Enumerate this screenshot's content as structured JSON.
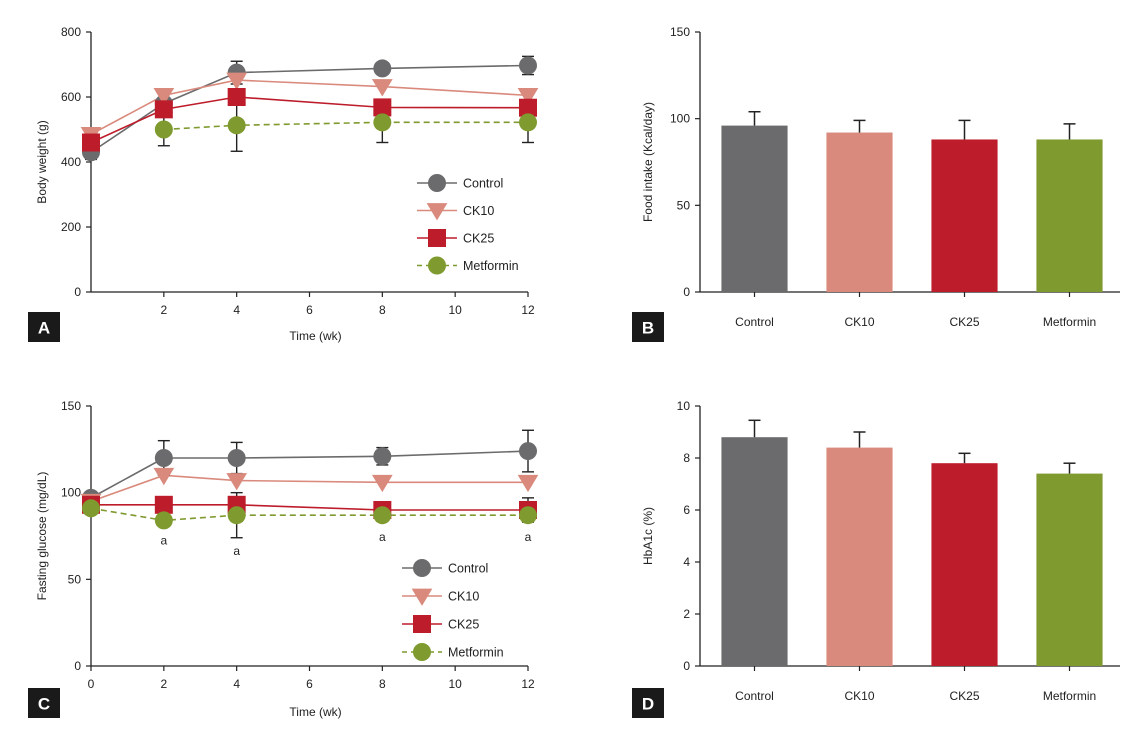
{
  "panels": [
    {
      "id": "A",
      "label": "A"
    },
    {
      "id": "B",
      "label": "B"
    },
    {
      "id": "C",
      "label": "C"
    },
    {
      "id": "D",
      "label": "D"
    }
  ],
  "colors": {
    "Control": "#6b6b6d",
    "CK10": "#d98a7c",
    "CK25": "#bd1c2b",
    "Metformin": "#7f9a2e",
    "error": "#222222",
    "axis": "#222222"
  },
  "chart_data": [
    {
      "panel": "A",
      "type": "line",
      "title": "",
      "xlabel": "Time (wk)",
      "ylabel": "Body weight (g)",
      "xlim": [
        0,
        12
      ],
      "ylim": [
        0,
        800
      ],
      "xticks": [
        2,
        4,
        6,
        8,
        10,
        12
      ],
      "yticks": [
        0,
        200,
        400,
        600,
        800
      ],
      "legend": "bottom-right",
      "series": [
        {
          "name": "Control",
          "marker": "circle",
          "dashed": false,
          "x": [
            0,
            2,
            4,
            8,
            12
          ],
          "y": [
            430,
            580,
            675,
            688,
            697
          ],
          "err": [
            22,
            0,
            35,
            0,
            28
          ]
        },
        {
          "name": "CK10",
          "marker": "triangle",
          "dashed": false,
          "x": [
            0,
            2,
            4,
            8,
            12
          ],
          "y": [
            485,
            605,
            652,
            632,
            605
          ],
          "err": [
            0,
            0,
            0,
            0,
            0
          ]
        },
        {
          "name": "CK25",
          "marker": "square",
          "dashed": false,
          "x": [
            0,
            2,
            4,
            8,
            12
          ],
          "y": [
            460,
            562,
            600,
            568,
            567
          ],
          "err": [
            0,
            0,
            0,
            0,
            0
          ]
        },
        {
          "name": "Metformin",
          "marker": "circle",
          "dashed": true,
          "x": [
            2,
            4,
            8,
            12
          ],
          "y": [
            500,
            513,
            522,
            522
          ],
          "err": [
            50,
            80,
            62,
            62
          ]
        }
      ]
    },
    {
      "panel": "B",
      "type": "bar",
      "title": "",
      "xlabel": "",
      "ylabel": "Food intake (Kcal/day)",
      "ylim": [
        0,
        150
      ],
      "yticks": [
        0,
        50,
        100,
        150
      ],
      "categories": [
        "Control",
        "CK10",
        "CK25",
        "Metformin"
      ],
      "values": [
        96,
        92,
        88,
        88
      ],
      "err": [
        8,
        7,
        11,
        9
      ]
    },
    {
      "panel": "C",
      "type": "line",
      "title": "",
      "xlabel": "Time (wk)",
      "ylabel": "Fasting glucose (mg/dL)",
      "xlim": [
        0,
        12
      ],
      "ylim": [
        0,
        150
      ],
      "xticks": [
        0,
        2,
        4,
        6,
        8,
        10,
        12
      ],
      "yticks": [
        0,
        50,
        100,
        150
      ],
      "legend": "bottom-right",
      "annotations": [
        {
          "x": 2,
          "y": 70,
          "text": "a"
        },
        {
          "x": 4,
          "y": 64,
          "text": "a"
        },
        {
          "x": 8,
          "y": 72,
          "text": "a"
        },
        {
          "x": 12,
          "y": 72,
          "text": "a"
        }
      ],
      "series": [
        {
          "name": "Control",
          "marker": "circle",
          "dashed": false,
          "x": [
            0,
            2,
            4,
            8,
            12
          ],
          "y": [
            97,
            120,
            120,
            121,
            124
          ],
          "err": [
            0,
            10,
            9,
            5,
            12
          ]
        },
        {
          "name": "CK10",
          "marker": "triangle",
          "dashed": false,
          "x": [
            0,
            2,
            4,
            8,
            12
          ],
          "y": [
            95,
            110,
            107,
            106,
            106
          ],
          "err": [
            0,
            0,
            0,
            0,
            0
          ]
        },
        {
          "name": "CK25",
          "marker": "square",
          "dashed": false,
          "x": [
            0,
            2,
            4,
            8,
            12
          ],
          "y": [
            93,
            93,
            93,
            90,
            90
          ],
          "err": [
            0,
            0,
            0,
            0,
            7
          ]
        },
        {
          "name": "Metformin",
          "marker": "circle",
          "dashed": true,
          "x": [
            0,
            2,
            4,
            8,
            12
          ],
          "y": [
            91,
            84,
            87,
            87,
            87
          ],
          "err": [
            0,
            0,
            13,
            0,
            0
          ]
        }
      ]
    },
    {
      "panel": "D",
      "type": "bar",
      "title": "",
      "xlabel": "",
      "ylabel": "HbA1c (%)",
      "ylim": [
        0,
        10
      ],
      "yticks": [
        0,
        2,
        4,
        6,
        8,
        10
      ],
      "categories": [
        "Control",
        "CK10",
        "CK25",
        "Metformin"
      ],
      "values": [
        8.8,
        8.4,
        7.8,
        7.4
      ],
      "err": [
        0.65,
        0.6,
        0.38,
        0.4
      ]
    }
  ]
}
